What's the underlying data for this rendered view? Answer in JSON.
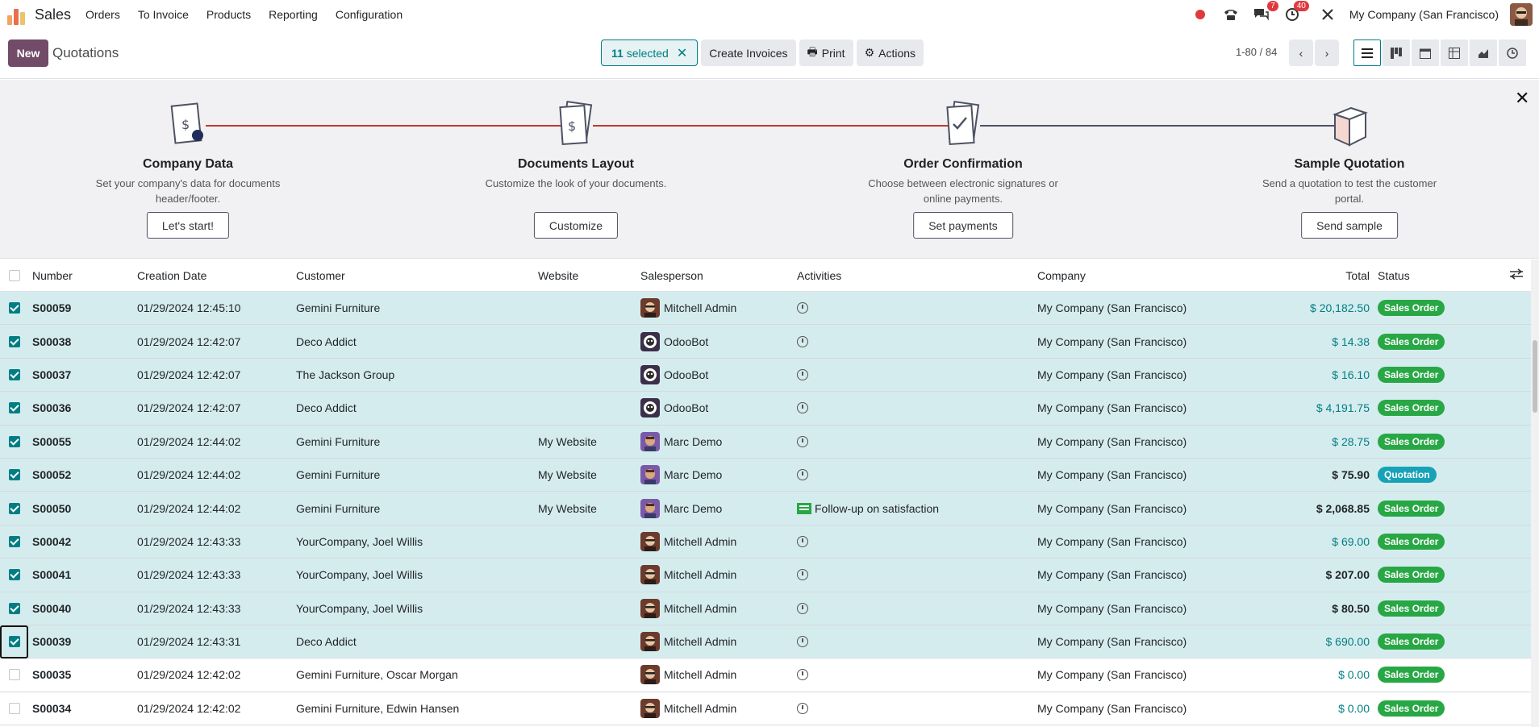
{
  "nav": {
    "app_name": "Sales",
    "menu": [
      "Orders",
      "To Invoice",
      "Products",
      "Reporting",
      "Configuration"
    ],
    "messages_count": "7",
    "activities_count": "40",
    "company": "My Company (San Francisco)"
  },
  "control": {
    "new_label": "New",
    "breadcrumb": "Quotations",
    "selected_count": "11",
    "selected_label": "selected",
    "create_invoices": "Create Invoices",
    "print": "Print",
    "actions": "Actions",
    "pager": "1-80 / 84"
  },
  "onboarding": {
    "steps": [
      {
        "title": "Company Data",
        "desc": "Set your company's data for documents header/footer.",
        "button": "Let's start!"
      },
      {
        "title": "Documents Layout",
        "desc": "Customize the look of your documents.",
        "button": "Customize"
      },
      {
        "title": "Order Confirmation",
        "desc": "Choose between electronic signatures or online payments.",
        "button": "Set payments"
      },
      {
        "title": "Sample Quotation",
        "desc": "Send a quotation to test the customer portal.",
        "button": "Send sample"
      }
    ]
  },
  "table": {
    "headers": {
      "number": "Number",
      "date": "Creation Date",
      "customer": "Customer",
      "website": "Website",
      "salesperson": "Salesperson",
      "activities": "Activities",
      "company": "Company",
      "total": "Total",
      "status": "Status"
    },
    "rows": [
      {
        "number": "S00059",
        "date": "01/29/2024 12:45:10",
        "customer": "Gemini Furniture",
        "website": "",
        "salesperson": "Mitchell Admin",
        "avatar": "mitchell",
        "activity": "",
        "company": "My Company (San Francisco)",
        "total": "$ 20,182.50",
        "total_style": "link",
        "status": "Sales Order",
        "status_type": "so",
        "selected": true
      },
      {
        "number": "S00038",
        "date": "01/29/2024 12:42:07",
        "customer": "Deco Addict",
        "website": "",
        "salesperson": "OdooBot",
        "avatar": "odoobot",
        "activity": "",
        "company": "My Company (San Francisco)",
        "total": "$ 14.38",
        "total_style": "link",
        "status": "Sales Order",
        "status_type": "so",
        "selected": true
      },
      {
        "number": "S00037",
        "date": "01/29/2024 12:42:07",
        "customer": "The Jackson Group",
        "website": "",
        "salesperson": "OdooBot",
        "avatar": "odoobot",
        "activity": "",
        "company": "My Company (San Francisco)",
        "total": "$ 16.10",
        "total_style": "link",
        "status": "Sales Order",
        "status_type": "so",
        "selected": true
      },
      {
        "number": "S00036",
        "date": "01/29/2024 12:42:07",
        "customer": "Deco Addict",
        "website": "",
        "salesperson": "OdooBot",
        "avatar": "odoobot",
        "activity": "",
        "company": "My Company (San Francisco)",
        "total": "$ 4,191.75",
        "total_style": "link",
        "status": "Sales Order",
        "status_type": "so",
        "selected": true
      },
      {
        "number": "S00055",
        "date": "01/29/2024 12:44:02",
        "customer": "Gemini Furniture",
        "website": "My Website",
        "salesperson": "Marc Demo",
        "avatar": "marc",
        "activity": "",
        "company": "My Company (San Francisco)",
        "total": "$ 28.75",
        "total_style": "link",
        "status": "Sales Order",
        "status_type": "so",
        "selected": true
      },
      {
        "number": "S00052",
        "date": "01/29/2024 12:44:02",
        "customer": "Gemini Furniture",
        "website": "My Website",
        "salesperson": "Marc Demo",
        "avatar": "marc",
        "activity": "",
        "company": "My Company (San Francisco)",
        "total": "$ 75.90",
        "total_style": "bold",
        "status": "Quotation",
        "status_type": "q",
        "selected": true
      },
      {
        "number": "S00050",
        "date": "01/29/2024 12:44:02",
        "customer": "Gemini Furniture",
        "website": "My Website",
        "salesperson": "Marc Demo",
        "avatar": "marc",
        "activity": "Follow-up on satisfaction",
        "company": "My Company (San Francisco)",
        "total": "$ 2,068.85",
        "total_style": "bold",
        "status": "Sales Order",
        "status_type": "so",
        "selected": true
      },
      {
        "number": "S00042",
        "date": "01/29/2024 12:43:33",
        "customer": "YourCompany, Joel Willis",
        "website": "",
        "salesperson": "Mitchell Admin",
        "avatar": "mitchell",
        "activity": "",
        "company": "My Company (San Francisco)",
        "total": "$ 69.00",
        "total_style": "link",
        "status": "Sales Order",
        "status_type": "so",
        "selected": true
      },
      {
        "number": "S00041",
        "date": "01/29/2024 12:43:33",
        "customer": "YourCompany, Joel Willis",
        "website": "",
        "salesperson": "Mitchell Admin",
        "avatar": "mitchell",
        "activity": "",
        "company": "My Company (San Francisco)",
        "total": "$ 207.00",
        "total_style": "bold",
        "status": "Sales Order",
        "status_type": "so",
        "selected": true
      },
      {
        "number": "S00040",
        "date": "01/29/2024 12:43:33",
        "customer": "YourCompany, Joel Willis",
        "website": "",
        "salesperson": "Mitchell Admin",
        "avatar": "mitchell",
        "activity": "",
        "company": "My Company (San Francisco)",
        "total": "$ 80.50",
        "total_style": "bold",
        "status": "Sales Order",
        "status_type": "so",
        "selected": true
      },
      {
        "number": "S00039",
        "date": "01/29/2024 12:43:31",
        "customer": "Deco Addict",
        "website": "",
        "salesperson": "Mitchell Admin",
        "avatar": "mitchell",
        "activity": "",
        "company": "My Company (San Francisco)",
        "total": "$ 690.00",
        "total_style": "link",
        "status": "Sales Order",
        "status_type": "so",
        "selected": true,
        "focused": true
      },
      {
        "number": "S00035",
        "date": "01/29/2024 12:42:02",
        "customer": "Gemini Furniture, Oscar Morgan",
        "website": "",
        "salesperson": "Mitchell Admin",
        "avatar": "mitchell",
        "activity": "",
        "company": "My Company (San Francisco)",
        "total": "$ 0.00",
        "total_style": "link",
        "status": "Sales Order",
        "status_type": "so",
        "selected": false
      },
      {
        "number": "S00034",
        "date": "01/29/2024 12:42:02",
        "customer": "Gemini Furniture, Edwin Hansen",
        "website": "",
        "salesperson": "Mitchell Admin",
        "avatar": "mitchell",
        "activity": "",
        "company": "My Company (San Francisco)",
        "total": "$ 0.00",
        "total_style": "link",
        "status": "Sales Order",
        "status_type": "so",
        "selected": false
      }
    ]
  },
  "colors": {
    "brand": "#714b67",
    "accent": "#017e84",
    "selected_row": "#d5ecee",
    "sales_order": "#28a745",
    "quotation": "#17a2b8"
  }
}
